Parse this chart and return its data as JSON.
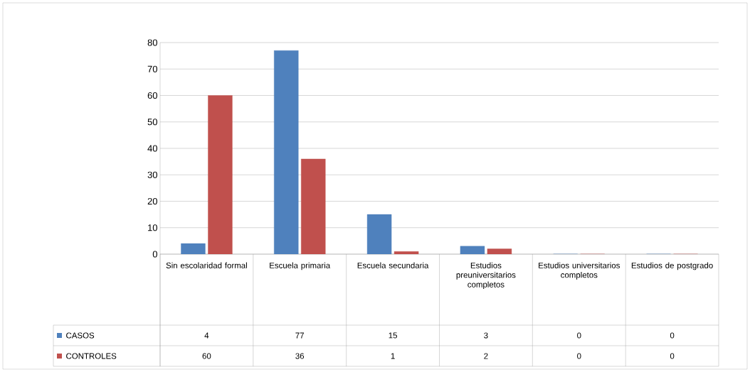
{
  "chart_data": {
    "type": "bar",
    "categories": [
      "Sin escolaridad formal",
      "Escuela primaria",
      "Escuela secundaria",
      "Estudios preuniversitarios completos",
      "Estudios universitarios completos",
      "Estudios de postgrado"
    ],
    "series": [
      {
        "name": "CASOS",
        "color": "#4f81bd",
        "values": [
          4,
          77,
          15,
          3,
          0,
          0
        ]
      },
      {
        "name": "CONTROLES",
        "color": "#c0504d",
        "values": [
          60,
          36,
          1,
          2,
          0,
          0
        ]
      }
    ],
    "ylim": [
      0,
      80
    ],
    "yticks": [
      0,
      10,
      20,
      30,
      40,
      50,
      60,
      70,
      80
    ],
    "grid": "y",
    "data_labels": true,
    "legend": "bottom left"
  }
}
